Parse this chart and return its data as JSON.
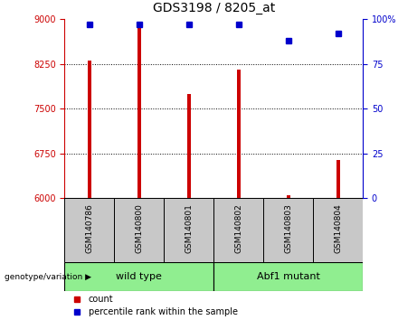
{
  "title": "GDS3198 / 8205_at",
  "samples": [
    "GSM140786",
    "GSM140800",
    "GSM140801",
    "GSM140802",
    "GSM140803",
    "GSM140804"
  ],
  "counts": [
    8300,
    8900,
    7750,
    8150,
    6050,
    6650
  ],
  "percentiles": [
    97,
    97,
    97,
    97,
    88,
    92
  ],
  "ylim_left": [
    6000,
    9000
  ],
  "yticks_left": [
    6000,
    6750,
    7500,
    8250,
    9000
  ],
  "ylim_right": [
    0,
    100
  ],
  "yticks_right": [
    0,
    25,
    50,
    75,
    100
  ],
  "bar_color": "#cc0000",
  "dot_color": "#0000cc",
  "bar_width": 0.07,
  "group_label": "genotype/variation",
  "legend_count": "count",
  "legend_percentile": "percentile rank within the sample",
  "ylabel_left_color": "#cc0000",
  "ylabel_right_color": "#0000cc",
  "background_color": "#ffffff",
  "plot_bg": "#ffffff",
  "label_area_color": "#c8c8c8",
  "group_area_color": "#90ee90"
}
